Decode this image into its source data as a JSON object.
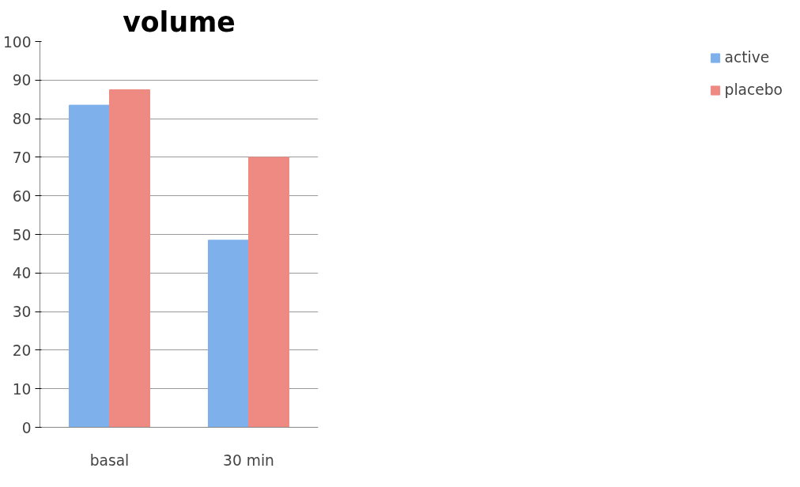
{
  "chart_data": {
    "type": "bar",
    "title": "volume",
    "categories": [
      "basal",
      "30 min"
    ],
    "series": [
      {
        "name": "active",
        "color": "#7eb0ec",
        "values": [
          83.5,
          48.5
        ]
      },
      {
        "name": "placebo",
        "color": "#ee8a82",
        "values": [
          87.5,
          70
        ]
      }
    ],
    "ylim": [
      0,
      100
    ],
    "yticks": [
      0,
      10,
      20,
      30,
      40,
      50,
      60,
      70,
      80,
      90,
      100
    ],
    "grid": "y",
    "legend": "right"
  }
}
